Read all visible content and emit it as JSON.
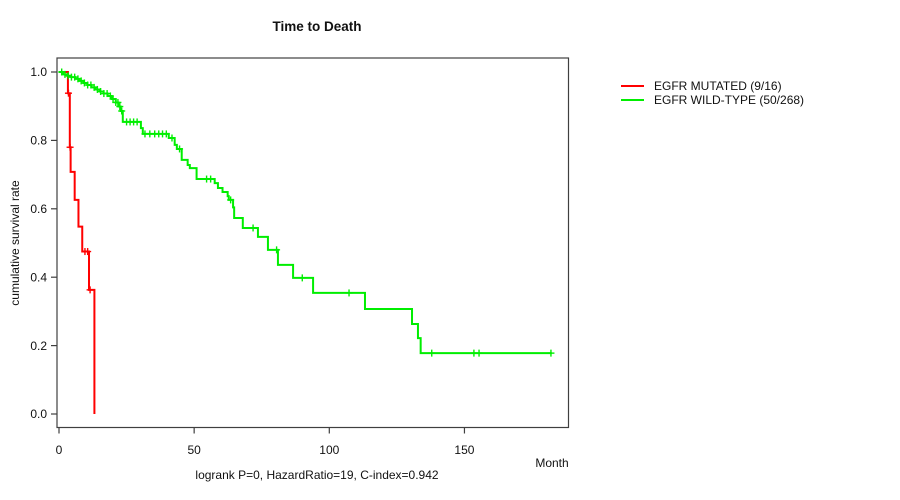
{
  "chart_data": {
    "type": "line",
    "subtype": "kaplan-meier-step",
    "title": "Time to Death",
    "xlabel": "Month",
    "ylabel": "cumulative survival rate",
    "annotation": "logrank P=0, HazardRatio=19, C-index=0.942",
    "xticks": [
      0,
      50,
      100,
      150
    ],
    "yticks": [
      0.0,
      0.2,
      0.4,
      0.6,
      0.8,
      1.0
    ],
    "xlim": [
      0,
      188
    ],
    "ylim": [
      0,
      1
    ],
    "grid": false,
    "legend_position": "right-outside",
    "axis_color": "#3f3f3f",
    "text_color": "#111111",
    "series": [
      {
        "name": "EGFR MUTATED (9/16)",
        "color": "#ff0000",
        "end_time": 13.1,
        "steps": [
          [
            0,
            1.0
          ],
          [
            3.3,
            0.938
          ],
          [
            4.0,
            0.78
          ],
          [
            4.3,
            0.708
          ],
          [
            5.8,
            0.626
          ],
          [
            7.2,
            0.548
          ],
          [
            8.6,
            0.475
          ],
          [
            11.1,
            0.363
          ],
          [
            13.1,
            0.0
          ]
        ],
        "censor_times": [
          3.5,
          4.1,
          9.6,
          10.6,
          11.5
        ]
      },
      {
        "name": "EGFR WILD-TYPE (50/268)",
        "color": "#00ee00",
        "end_time": 182.3,
        "steps": [
          [
            0,
            1.0
          ],
          [
            1.5,
            0.993
          ],
          [
            3,
            0.989
          ],
          [
            4.5,
            0.985
          ],
          [
            6,
            0.98
          ],
          [
            7.5,
            0.974
          ],
          [
            9,
            0.968
          ],
          [
            10.5,
            0.962
          ],
          [
            12,
            0.955
          ],
          [
            13.5,
            0.949
          ],
          [
            15,
            0.943
          ],
          [
            16.5,
            0.937
          ],
          [
            18,
            0.93
          ],
          [
            19.5,
            0.921
          ],
          [
            21,
            0.911
          ],
          [
            22,
            0.899
          ],
          [
            22.8,
            0.886
          ],
          [
            23.6,
            0.854
          ],
          [
            30.3,
            0.836
          ],
          [
            31,
            0.819
          ],
          [
            40.6,
            0.807
          ],
          [
            42.8,
            0.787
          ],
          [
            43.6,
            0.775
          ],
          [
            45.4,
            0.743
          ],
          [
            47.6,
            0.728
          ],
          [
            48.4,
            0.719
          ],
          [
            50.9,
            0.687
          ],
          [
            57.6,
            0.675
          ],
          [
            58.8,
            0.661
          ],
          [
            60.5,
            0.649
          ],
          [
            62.4,
            0.637
          ],
          [
            62.8,
            0.626
          ],
          [
            64.4,
            0.604
          ],
          [
            64.8,
            0.573
          ],
          [
            68,
            0.544
          ],
          [
            73.6,
            0.518
          ],
          [
            77.3,
            0.48
          ],
          [
            81,
            0.436
          ],
          [
            86.6,
            0.398
          ],
          [
            94,
            0.354
          ],
          [
            113.2,
            0.307
          ],
          [
            130.6,
            0.263
          ],
          [
            132.8,
            0.222
          ],
          [
            133.8,
            0.178
          ]
        ],
        "censor_times": [
          1,
          2.2,
          3.4,
          4.6,
          5.8,
          7,
          8.2,
          9.4,
          10.6,
          11.8,
          13,
          14.2,
          15.4,
          16.6,
          17.8,
          19,
          20,
          21,
          21.8,
          22.5,
          23.2,
          25,
          26.3,
          27.6,
          28.9,
          31.8,
          33.6,
          35.4,
          36.9,
          38.3,
          39.7,
          41.8,
          44.6,
          54.6,
          56.1,
          63.5,
          71.8,
          80.5,
          90,
          107.3,
          137.9,
          153.5,
          155.4,
          182
        ]
      }
    ]
  }
}
